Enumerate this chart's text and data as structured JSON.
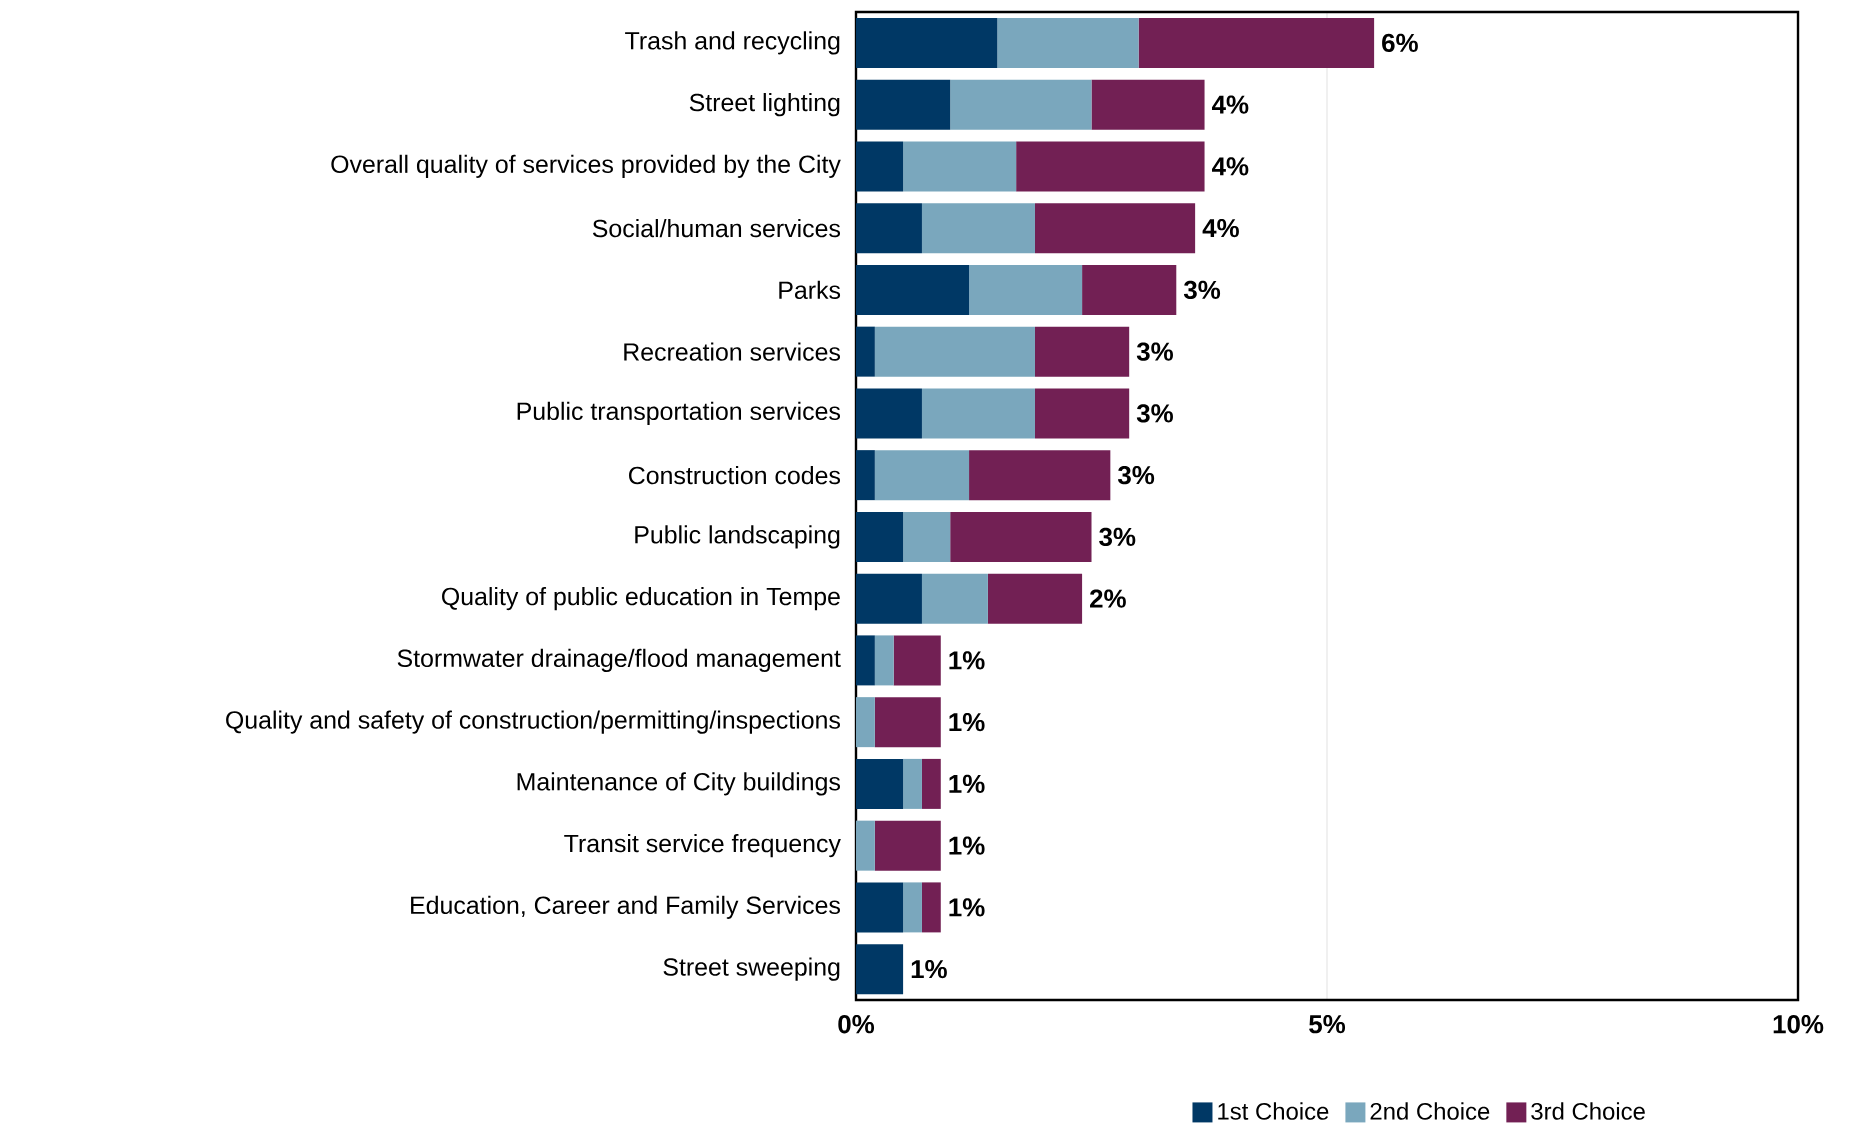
{
  "chart_data": {
    "type": "bar",
    "orientation": "horizontal",
    "stacked": true,
    "categories": [
      "Trash and recycling",
      "Street lighting",
      "Overall quality of services provided by the City",
      "Social/human services",
      "Parks",
      "Recreation services",
      "Public transportation services",
      "Construction codes",
      "Public landscaping",
      "Quality of public education in Tempe",
      "Stormwater drainage/flood management",
      "Quality and safety of construction/permitting/inspections",
      "Maintenance of City buildings",
      "Transit service frequency",
      "Education, Career and Family Services",
      "Street sweeping"
    ],
    "series": [
      {
        "name": "1st Choice",
        "color": "#003865",
        "values": [
          1.5,
          1.0,
          0.5,
          0.7,
          1.2,
          0.2,
          0.7,
          0.2,
          0.5,
          0.7,
          0.2,
          0,
          0.5,
          0,
          0.5,
          0.5
        ]
      },
      {
        "name": "2nd Choice",
        "color": "#7aa7bd",
        "values": [
          1.5,
          1.5,
          1.2,
          1.2,
          1.2,
          1.7,
          1.2,
          1.0,
          0.5,
          0.7,
          0.2,
          0.2,
          0.2,
          0.2,
          0.2,
          0
        ]
      },
      {
        "name": "3rd Choice",
        "color": "#722054",
        "values": [
          2.5,
          1.2,
          2.0,
          1.7,
          1.0,
          1.0,
          1.0,
          1.5,
          1.5,
          1.0,
          0.5,
          0.7,
          0.2,
          0.7,
          0.2,
          0
        ]
      }
    ],
    "totals": [
      "6%",
      "4%",
      "4%",
      "4%",
      "3%",
      "3%",
      "3%",
      "3%",
      "3%",
      "2%",
      "1%",
      "1%",
      "1%",
      "1%",
      "1%",
      "1%"
    ],
    "xlim": [
      0,
      10
    ],
    "xticks": [
      {
        "value": 0,
        "label": "0%"
      },
      {
        "value": 5,
        "label": "5%"
      },
      {
        "value": 10,
        "label": "10%"
      }
    ],
    "grid": "x",
    "legend": "bottom"
  }
}
